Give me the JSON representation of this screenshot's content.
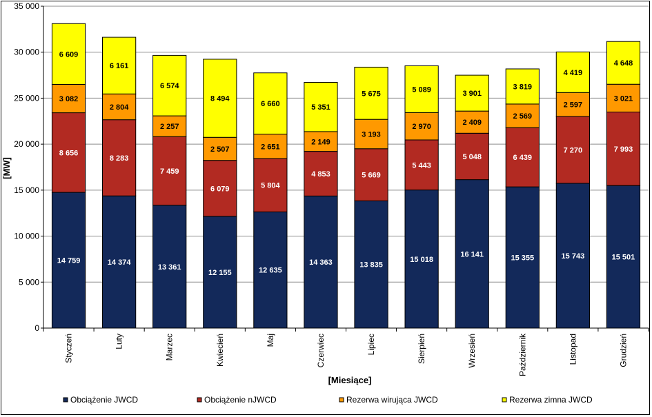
{
  "chart_data": {
    "type": "bar",
    "stacked": true,
    "categories": [
      "Styczeń",
      "Luty",
      "Marzec",
      "Kwiecień",
      "Maj",
      "Czerwiec",
      "Lipiec",
      "Sierpień",
      "Wrzesień",
      "Październik",
      "Listopad",
      "Grudzień"
    ],
    "series": [
      {
        "name": "Obciążenie JWCD",
        "color": "#13295A",
        "label_color": "#ffffff",
        "values": [
          14759,
          14374,
          13361,
          12155,
          12635,
          14363,
          13835,
          15018,
          16141,
          15355,
          15743,
          15501
        ],
        "labels": [
          "14 759",
          "14 374",
          "13 361",
          "12 155",
          "12 635",
          "14 363",
          "13 835",
          "15 018",
          "16 141",
          "15 355",
          "15 743",
          "15 501"
        ]
      },
      {
        "name": "Obciążenie nJWCD",
        "color": "#B22A22",
        "label_color": "#ffffff",
        "values": [
          8656,
          8283,
          7459,
          6079,
          5804,
          4853,
          5669,
          5443,
          5048,
          6439,
          7270,
          7993
        ],
        "labels": [
          "8 656",
          "8 283",
          "7 459",
          "6 079",
          "5 804",
          "4 853",
          "5 669",
          "5 443",
          "5 048",
          "6 439",
          "7 270",
          "7 993"
        ]
      },
      {
        "name": "Rezerwa wirująca JWCD",
        "color": "#FF9900",
        "label_color": "#000000",
        "values": [
          3082,
          2804,
          2257,
          2507,
          2651,
          2149,
          3193,
          2970,
          2409,
          2569,
          2597,
          3021
        ],
        "labels": [
          "3 082",
          "2 804",
          "2 257",
          "2 507",
          "2 651",
          "2 149",
          "3 193",
          "2 970",
          "2 409",
          "2 569",
          "2 597",
          "3 021"
        ]
      },
      {
        "name": "Rezerwa zimna JWCD",
        "color": "#FFFF00",
        "label_color": "#000000",
        "values": [
          6609,
          6161,
          6574,
          8494,
          6660,
          5351,
          5675,
          5089,
          3901,
          3819,
          4419,
          4648
        ],
        "labels": [
          "6 609",
          "6 161",
          "6 574",
          "8 494",
          "6 660",
          "5 351",
          "5 675",
          "5 089",
          "3 901",
          "3 819",
          "4 419",
          "4 648"
        ]
      }
    ],
    "xlabel": "[Miesiące]",
    "ylabel": "[MW]",
    "ylim": [
      0,
      35000
    ],
    "yticks": [
      0,
      5000,
      10000,
      15000,
      20000,
      25000,
      30000,
      35000
    ],
    "ytick_labels": [
      "0",
      "5 000",
      "10 000",
      "15 000",
      "20 000",
      "25 000",
      "30 000",
      "35 000"
    ],
    "grid": true,
    "legend_position": "bottom"
  }
}
